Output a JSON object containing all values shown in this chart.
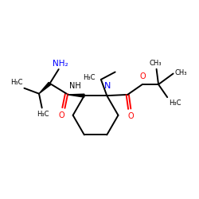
{
  "bg_color": "#ffffff",
  "bond_color": "#000000",
  "N_color": "#0000ff",
  "O_color": "#ff0000",
  "font_size": 7.0,
  "line_width": 1.4,
  "figsize": [
    2.5,
    2.5
  ],
  "dpi": 100,
  "xlim": [
    0,
    10
  ],
  "ylim": [
    0,
    10
  ]
}
